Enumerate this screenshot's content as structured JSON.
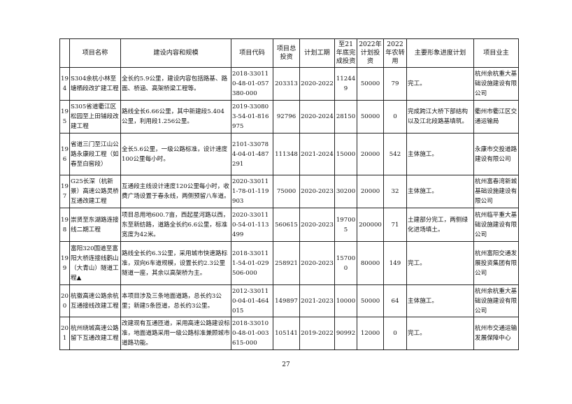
{
  "headers": [
    "",
    "项目名称",
    "建设内容和规模",
    "项目代码",
    "项目总投资",
    "计划工期",
    "至21年底完成投资",
    "2022年计划投资",
    "2022年农转用",
    "主要形象进度计划",
    "项目业主"
  ],
  "rows": [
    {
      "no": "194",
      "name": "S304余杭小林至塘栖段改扩建工程",
      "content": "全长约5.9公里，建设内容包括路基、路面、桥涵、高架桥梁工程等。",
      "code": "2018-330110-48-01-057380-000",
      "total": "203313",
      "period": "2020-2022",
      "done": "112449",
      "plan": "50000",
      "land": "79",
      "progress": "完工。",
      "owner": "杭州余杭重大基础设施建设有限公司"
    },
    {
      "no": "195",
      "name": "S305省道衢江区松园至上田铺段改建工程",
      "content": "路线全长6.66公里，其中新建段5.404公里，利用段1.256公里。",
      "code": "2019-330803-54-01-816975",
      "total": "92796",
      "period": "2020-2024",
      "done": "28150",
      "plan": "50000",
      "land": "0",
      "progress": "完成跨江大桥下部结构以及江北段路基填筑。",
      "owner": "衢州市衢江区交通运输局"
    },
    {
      "no": "196",
      "name": "省道三门至江山公路永康段工程（如春至白窖段）",
      "content": "全长5.6公里，一级公路标准，设计速度100公里每小时。",
      "code": "2101-330784-04-01-487291",
      "total": "111348",
      "period": "2021-2024",
      "done": "15000",
      "plan": "20000",
      "land": "542",
      "progress": "主体施工。",
      "owner": "永康市交投道路建设有限公司"
    },
    {
      "no": "197",
      "name": "G25长深（杭新景）高速公路灵桥互通改建工程",
      "content": "互通段主线设计速度120公里每小时，收费广场设置于春永线，两侧预留八车道。",
      "code": "2020-330111-78-01-119903",
      "total": "75000",
      "period": "2020-2023",
      "done": "30200",
      "plan": "20000",
      "land": "32",
      "progress": "主体施工。",
      "owner": "杭州富春湾新城基础设施建设有限公司"
    },
    {
      "no": "198",
      "name": "崇贤至东湖路连接线二期工程",
      "content": "项目总用地600.7亩，西起星河路以西，东至新纺路，道路全长约6.6公里，标准宽度为42米。",
      "code": "2020-330110-54-01-113499",
      "total": "560615",
      "period": "2020-2023",
      "done": "197005",
      "plan": "200000",
      "land": "71",
      "progress": "土建部分完工，两侧绿化进场填土。",
      "owner": "杭州临平重大基础设施建设有限公司"
    },
    {
      "no": "199",
      "name": "富阳320国道至富阳大桥连接线鹳山（大青山）隧道工程▲",
      "content": "路线全长约6.3公里，采用城市快速路标准，双向6车道规模，设置长约2.3公里隧道一座，其余以高架桥为主。",
      "code": "2018-330111-54-01-029506-000",
      "total": "258921",
      "period": "2020-2023",
      "done": "157000",
      "plan": "80000",
      "land": "149",
      "progress": "完工。",
      "owner": "杭州富阳交通发展投资集团有限公司"
    },
    {
      "no": "200",
      "name": "杭徽高速公路余杭互通接线改建工程",
      "content": "本项目涉及三条地面道路，总长约3公里；新建5条匝道，总长约3公里。",
      "code": "2012-330110-04-01-464015",
      "total": "149897",
      "period": "2021-2023",
      "done": "10000",
      "plan": "50000",
      "land": "64",
      "progress": "主体施工。",
      "owner": "杭州余杭重大基础设施建设有限公司"
    },
    {
      "no": "201",
      "name": "杭州绕城高速公路留下互通改建工程",
      "content": "改建现有互通匝道，采用高速公路建设标准，地面道路采用一级公路标准兼顾城市道路功能。",
      "code": "2018-330100-48-01-003615-000",
      "total": "105141",
      "period": "2019-2022",
      "done": "90992",
      "plan": "12000",
      "land": "0",
      "progress": "完工。",
      "owner": "杭州市交通运输发展保障中心"
    }
  ],
  "page_number": "27"
}
